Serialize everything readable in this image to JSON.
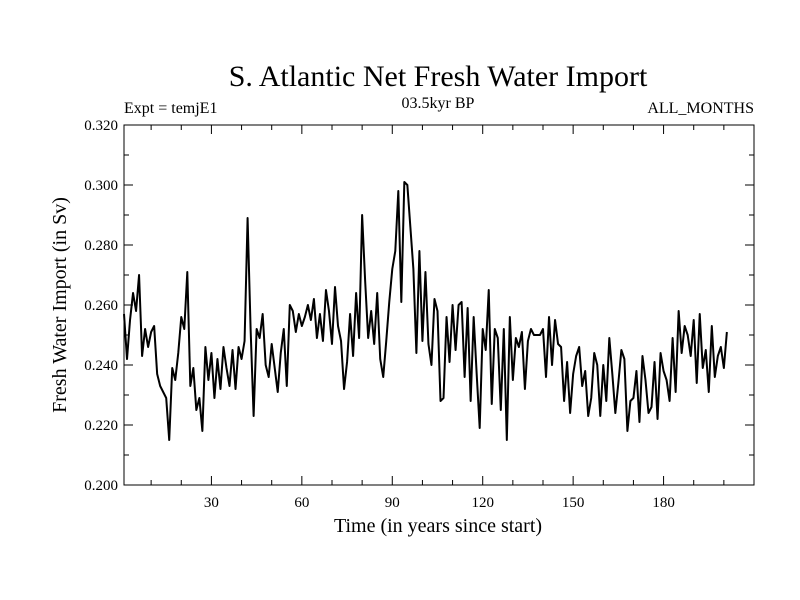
{
  "chart_data": {
    "type": "line",
    "title": "S. Atlantic Net Fresh Water Import",
    "subtitle_left": "Expt = temjE1",
    "subtitle_center": "03.5kyr BP",
    "subtitle_right": "ALL_MONTHS",
    "xlabel": "Time (in years since start)",
    "ylabel": "Fresh Water Import (in Sv)",
    "xlim": [
      1,
      210
    ],
    "ylim": [
      0.2,
      0.32
    ],
    "x_ticks": [
      30,
      60,
      90,
      120,
      150,
      180
    ],
    "x_tick_labels": [
      "30",
      "60",
      "90",
      "120",
      "150",
      "180"
    ],
    "y_ticks": [
      0.2,
      0.22,
      0.24,
      0.26,
      0.28,
      0.3,
      0.32
    ],
    "y_tick_labels": [
      "0.200",
      "0.220",
      "0.240",
      "0.260",
      "0.280",
      "0.300",
      "0.320"
    ],
    "line_color": "#000000",
    "series": [
      {
        "name": "Net Fresh Water Import",
        "x_start": 1,
        "x_step": 1,
        "values": [
          0.257,
          0.242,
          0.255,
          0.264,
          0.258,
          0.27,
          0.243,
          0.252,
          0.246,
          0.251,
          0.253,
          0.237,
          0.233,
          0.231,
          0.229,
          0.215,
          0.239,
          0.235,
          0.244,
          0.256,
          0.252,
          0.271,
          0.233,
          0.239,
          0.225,
          0.229,
          0.218,
          0.246,
          0.235,
          0.244,
          0.229,
          0.242,
          0.232,
          0.246,
          0.239,
          0.233,
          0.245,
          0.232,
          0.246,
          0.242,
          0.248,
          0.289,
          0.252,
          0.223,
          0.252,
          0.249,
          0.257,
          0.24,
          0.236,
          0.247,
          0.239,
          0.231,
          0.244,
          0.252,
          0.233,
          0.26,
          0.258,
          0.251,
          0.257,
          0.253,
          0.256,
          0.26,
          0.255,
          0.262,
          0.249,
          0.257,
          0.248,
          0.265,
          0.258,
          0.247,
          0.266,
          0.253,
          0.248,
          0.232,
          0.241,
          0.257,
          0.243,
          0.264,
          0.249,
          0.29,
          0.268,
          0.249,
          0.258,
          0.247,
          0.264,
          0.242,
          0.236,
          0.248,
          0.261,
          0.272,
          0.278,
          0.298,
          0.261,
          0.301,
          0.3,
          0.286,
          0.272,
          0.244,
          0.278,
          0.248,
          0.271,
          0.247,
          0.24,
          0.262,
          0.258,
          0.228,
          0.229,
          0.256,
          0.241,
          0.26,
          0.245,
          0.26,
          0.261,
          0.236,
          0.259,
          0.228,
          0.256,
          0.237,
          0.219,
          0.252,
          0.245,
          0.265,
          0.227,
          0.252,
          0.249,
          0.225,
          0.252,
          0.215,
          0.256,
          0.235,
          0.249,
          0.246,
          0.251,
          0.232,
          0.248,
          0.252,
          0.25,
          0.25,
          0.25,
          0.252,
          0.236,
          0.256,
          0.24,
          0.255,
          0.247,
          0.246,
          0.228,
          0.241,
          0.224,
          0.237,
          0.243,
          0.246,
          0.233,
          0.238,
          0.223,
          0.229,
          0.244,
          0.24,
          0.223,
          0.24,
          0.228,
          0.249,
          0.237,
          0.224,
          0.234,
          0.245,
          0.242,
          0.218,
          0.228,
          0.229,
          0.238,
          0.221,
          0.243,
          0.235,
          0.224,
          0.226,
          0.241,
          0.222,
          0.244,
          0.238,
          0.235,
          0.228,
          0.249,
          0.231,
          0.258,
          0.244,
          0.253,
          0.25,
          0.243,
          0.255,
          0.234,
          0.257,
          0.239,
          0.245,
          0.231,
          0.253,
          0.236,
          0.243,
          0.246,
          0.239,
          0.251
        ]
      }
    ]
  }
}
